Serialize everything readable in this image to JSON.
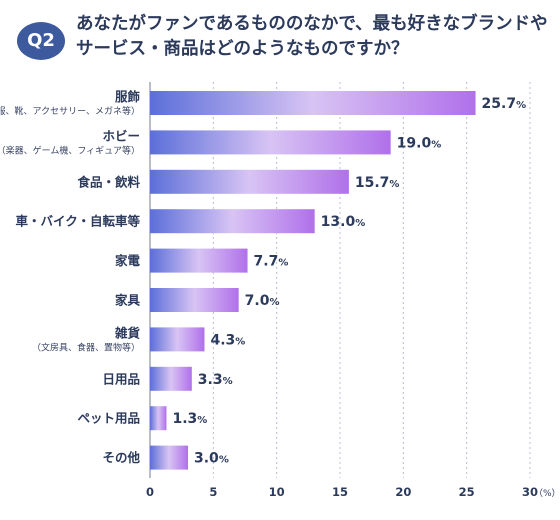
{
  "header": {
    "badge": "Q2",
    "title_line1": "あなたがファンであるもののなかで、最も好きなブランドや",
    "title_line2": "サービス・商品はどのようなものですか？"
  },
  "chart_data": {
    "type": "bar",
    "orientation": "horizontal",
    "categories": [
      "服飾",
      "ホビー",
      "食品・飲料",
      "車・バイク・自転車等",
      "家電",
      "家具",
      "雑貨",
      "日用品",
      "ペット用品",
      "その他"
    ],
    "category_notes": [
      "（服、靴、アクセサリー、メガネ等）",
      "（楽器、ゲーム機、フィギュア等）",
      "",
      "",
      "",
      "",
      "（文房具、食器、置物等）",
      "",
      "",
      ""
    ],
    "values": [
      25.7,
      19.0,
      15.7,
      13.0,
      7.7,
      7.0,
      4.3,
      3.3,
      1.3,
      3.0
    ],
    "value_labels": [
      "25.7",
      "19.0",
      "15.7",
      "13.0",
      "7.7",
      "7.0",
      "4.3",
      "3.3",
      "1.3",
      "3.0"
    ],
    "value_unit": "%",
    "x_ticks": [
      "0",
      "5",
      "10",
      "15",
      "20",
      "25",
      "30"
    ],
    "x_unit": "（%）",
    "xlim": [
      0,
      30
    ],
    "grid": true,
    "colors": {
      "bar_start": "#5b6fd9",
      "bar_mid": "#d8c4f4",
      "bar_end": "#b070ea",
      "grid": "#b9bed0",
      "axis": "#8c93a8"
    }
  }
}
